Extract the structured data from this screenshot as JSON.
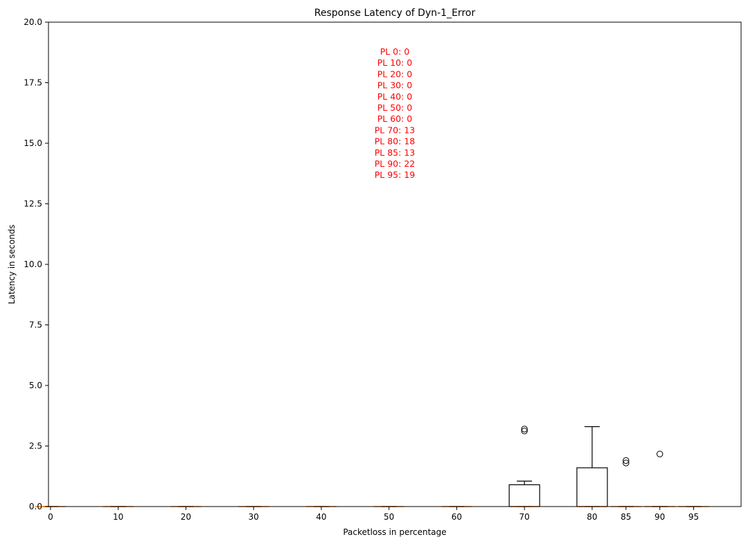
{
  "chart_data": {
    "type": "box",
    "title": "Response Latency of Dyn-1_Error",
    "xlabel": "Packetloss in percentage",
    "ylabel": "Latency in seconds",
    "xlim": [
      -0.3,
      102
    ],
    "ylim": [
      0,
      20
    ],
    "x_ticks": [
      0,
      10,
      20,
      30,
      40,
      50,
      60,
      70,
      80,
      85,
      90,
      95
    ],
    "x_tick_labels": [
      "0",
      "10",
      "20",
      "30",
      "40",
      "50",
      "60",
      "70",
      "80",
      "85",
      "90",
      "95"
    ],
    "y_ticks": [
      0.0,
      2.5,
      5.0,
      7.5,
      10.0,
      12.5,
      15.0,
      17.5,
      20.0
    ],
    "y_tick_labels": [
      "0.0",
      "2.5",
      "5.0",
      "7.5",
      "10.0",
      "12.5",
      "15.0",
      "17.5",
      "20.0"
    ],
    "grid": false,
    "box_width": 4.5,
    "boxes": [
      {
        "position": 0,
        "q1": 0,
        "median": 0,
        "q3": 0,
        "whisker_low": 0,
        "whisker_high": 0,
        "outliers": []
      },
      {
        "position": 10,
        "q1": 0,
        "median": 0,
        "q3": 0,
        "whisker_low": 0,
        "whisker_high": 0,
        "outliers": []
      },
      {
        "position": 20,
        "q1": 0,
        "median": 0,
        "q3": 0,
        "whisker_low": 0,
        "whisker_high": 0,
        "outliers": []
      },
      {
        "position": 30,
        "q1": 0,
        "median": 0,
        "q3": 0,
        "whisker_low": 0,
        "whisker_high": 0,
        "outliers": []
      },
      {
        "position": 40,
        "q1": 0,
        "median": 0,
        "q3": 0,
        "whisker_low": 0,
        "whisker_high": 0,
        "outliers": []
      },
      {
        "position": 50,
        "q1": 0,
        "median": 0,
        "q3": 0,
        "whisker_low": 0,
        "whisker_high": 0,
        "outliers": []
      },
      {
        "position": 60,
        "q1": 0,
        "median": 0,
        "q3": 0,
        "whisker_low": 0,
        "whisker_high": 0,
        "outliers": []
      },
      {
        "position": 70,
        "q1": 0,
        "median": 0,
        "q3": 0.9,
        "whisker_low": 0,
        "whisker_high": 1.05,
        "outliers": [
          3.12,
          3.2
        ]
      },
      {
        "position": 80,
        "q1": 0,
        "median": 0,
        "q3": 1.6,
        "whisker_low": 0,
        "whisker_high": 3.3,
        "outliers": []
      },
      {
        "position": 85,
        "q1": 0,
        "median": 0,
        "q3": 0,
        "whisker_low": 0,
        "whisker_high": 0,
        "outliers": [
          1.8,
          1.9
        ]
      },
      {
        "position": 90,
        "q1": 0,
        "median": 0,
        "q3": 0,
        "whisker_low": 0,
        "whisker_high": 0,
        "outliers": [
          2.17
        ]
      },
      {
        "position": 95,
        "q1": 0,
        "median": 0,
        "q3": 0,
        "whisker_low": 0,
        "whisker_high": 0,
        "outliers": []
      }
    ],
    "annotation_lines": [
      "PL 0: 0",
      "PL 10: 0",
      "PL 20: 0",
      "PL 30: 0",
      "PL 40: 0",
      "PL 50: 0",
      "PL 60: 0",
      "PL 70: 13",
      "PL 80: 18",
      "PL 85: 13",
      "PL 90: 22",
      "PL 95: 19"
    ],
    "colors": {
      "box_edge": "#000000",
      "median": "#ff7f0e",
      "annotation": "#ff0000",
      "axes": "#000000"
    }
  }
}
